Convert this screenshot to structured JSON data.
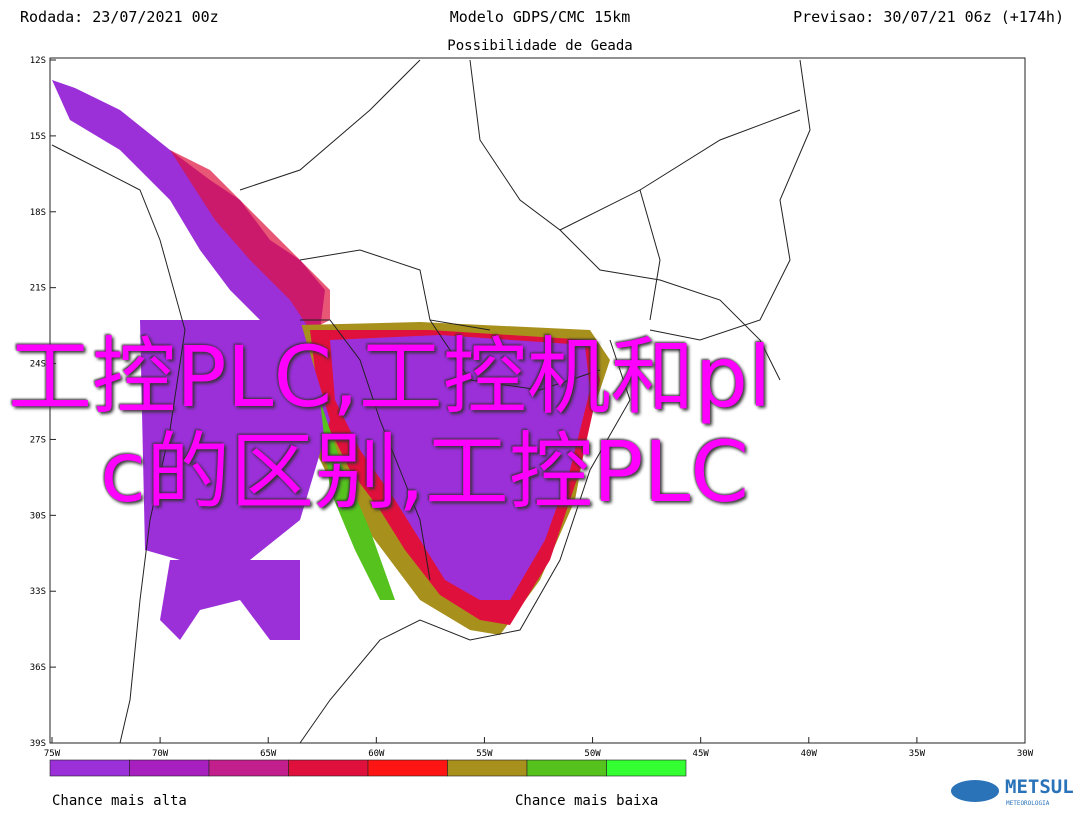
{
  "header": {
    "run": "Rodada: 23/07/2021 00z",
    "model": "Modelo GDPS/CMC 15km",
    "forecast": "Previsao: 30/07/21 06z (+174h)",
    "subtitle": "Possibilidade de Geada"
  },
  "map": {
    "lat_labels": [
      "12S",
      "15S",
      "18S",
      "21S",
      "24S",
      "27S",
      "30S",
      "33S",
      "36S",
      "39S"
    ],
    "lon_labels": [
      "75W",
      "70W",
      "65W",
      "60W",
      "55W",
      "50W",
      "45W",
      "40W",
      "35W",
      "30W"
    ]
  },
  "legend": {
    "colors": [
      "#9b30d9",
      "#a81fbf",
      "#c21f8c",
      "#e0103c",
      "#ff1414",
      "#a8901c",
      "#55c21e",
      "#33ff33"
    ],
    "high": "Chance mais alta",
    "low": "Chance mais baixa"
  },
  "logo": {
    "name": "METSUL",
    "tagline": "METEOROLOGIA"
  },
  "overlay": {
    "line1": "工控PLC,工控机和pl",
    "line2": "c的区别,工控PLC"
  }
}
